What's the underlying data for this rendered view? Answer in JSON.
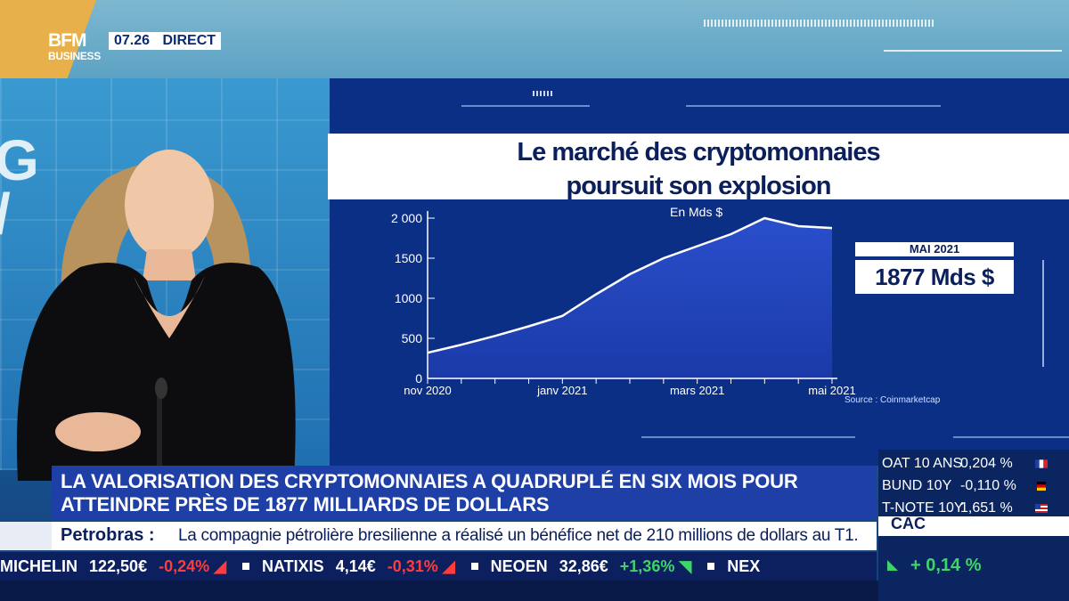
{
  "header": {
    "logo_top": "BFM",
    "logo_bottom": "BUSINESS",
    "time": "07.26",
    "live": "DIRECT"
  },
  "chart": {
    "title_line1": "Le marché des cryptomonnaies",
    "title_line2": "poursuit son explosion",
    "unit": "En Mds $",
    "callout_label": "MAI 2021",
    "callout_value": "1877 Mds $",
    "source": "Source : Coinmarketcap"
  },
  "chart_data": {
    "type": "area",
    "title": "Le marché des cryptomonnaies poursuit son explosion",
    "ylabel": "En Mds $",
    "ylim": [
      0,
      2000
    ],
    "yticks": [
      "2 000",
      "1500",
      "1000",
      "500",
      "0"
    ],
    "xticks": [
      "nov 2020",
      "janv 2021",
      "mars 2021",
      "mai 2021"
    ],
    "x": [
      0,
      0.5,
      1,
      1.5,
      2,
      2.5,
      3,
      3.5,
      4,
      4.5,
      5,
      5.5,
      6
    ],
    "values": [
      320,
      420,
      530,
      650,
      780,
      1050,
      1300,
      1500,
      1650,
      1800,
      2000,
      1900,
      1877
    ],
    "color": "#1e40b0",
    "line_color": "#ffffff"
  },
  "headline": {
    "line1": "LA VALORISATION DES CRYPTOMONNAIES A QUADRUPLÉ EN SIX MOIS POUR",
    "line2": "ATTEINDRE PRÈS DE 1877 MILLIARDS DE DOLLARS"
  },
  "news": {
    "label": "Petrobras :",
    "text": "La compagnie pétrolière bresilienne a réalisé un bénéfice net de 210 millions de dollars au T1."
  },
  "stocks": [
    {
      "name": "MICHELIN",
      "value": "122,50€",
      "change": "-0,24%",
      "dir": "neg"
    },
    {
      "name": "NATIXIS",
      "value": "4,14€",
      "change": "-0,31%",
      "dir": "neg"
    },
    {
      "name": "NEOEN",
      "value": "32,86€",
      "change": "+1,36%",
      "dir": "pos"
    },
    {
      "name": "NEX",
      "value": "",
      "change": "",
      "dir": "pos"
    }
  ],
  "rates": [
    {
      "name": "OAT 10 ANS",
      "value": "0,204 %",
      "flag": "fr"
    },
    {
      "name": "BUND 10Y",
      "value": "-0,110 %",
      "flag": "de"
    },
    {
      "name": "T-NOTE 10Y",
      "value": "1,651 %",
      "flag": "us"
    }
  ],
  "index": {
    "name": "CAC",
    "change": "+ 0,14 %"
  },
  "colors": {
    "navy": "#0c2f86",
    "banner": "#1e3fa6",
    "negative": "#ff3b3b",
    "positive": "#3fd46a",
    "logo_bg": "#e8b04a"
  }
}
